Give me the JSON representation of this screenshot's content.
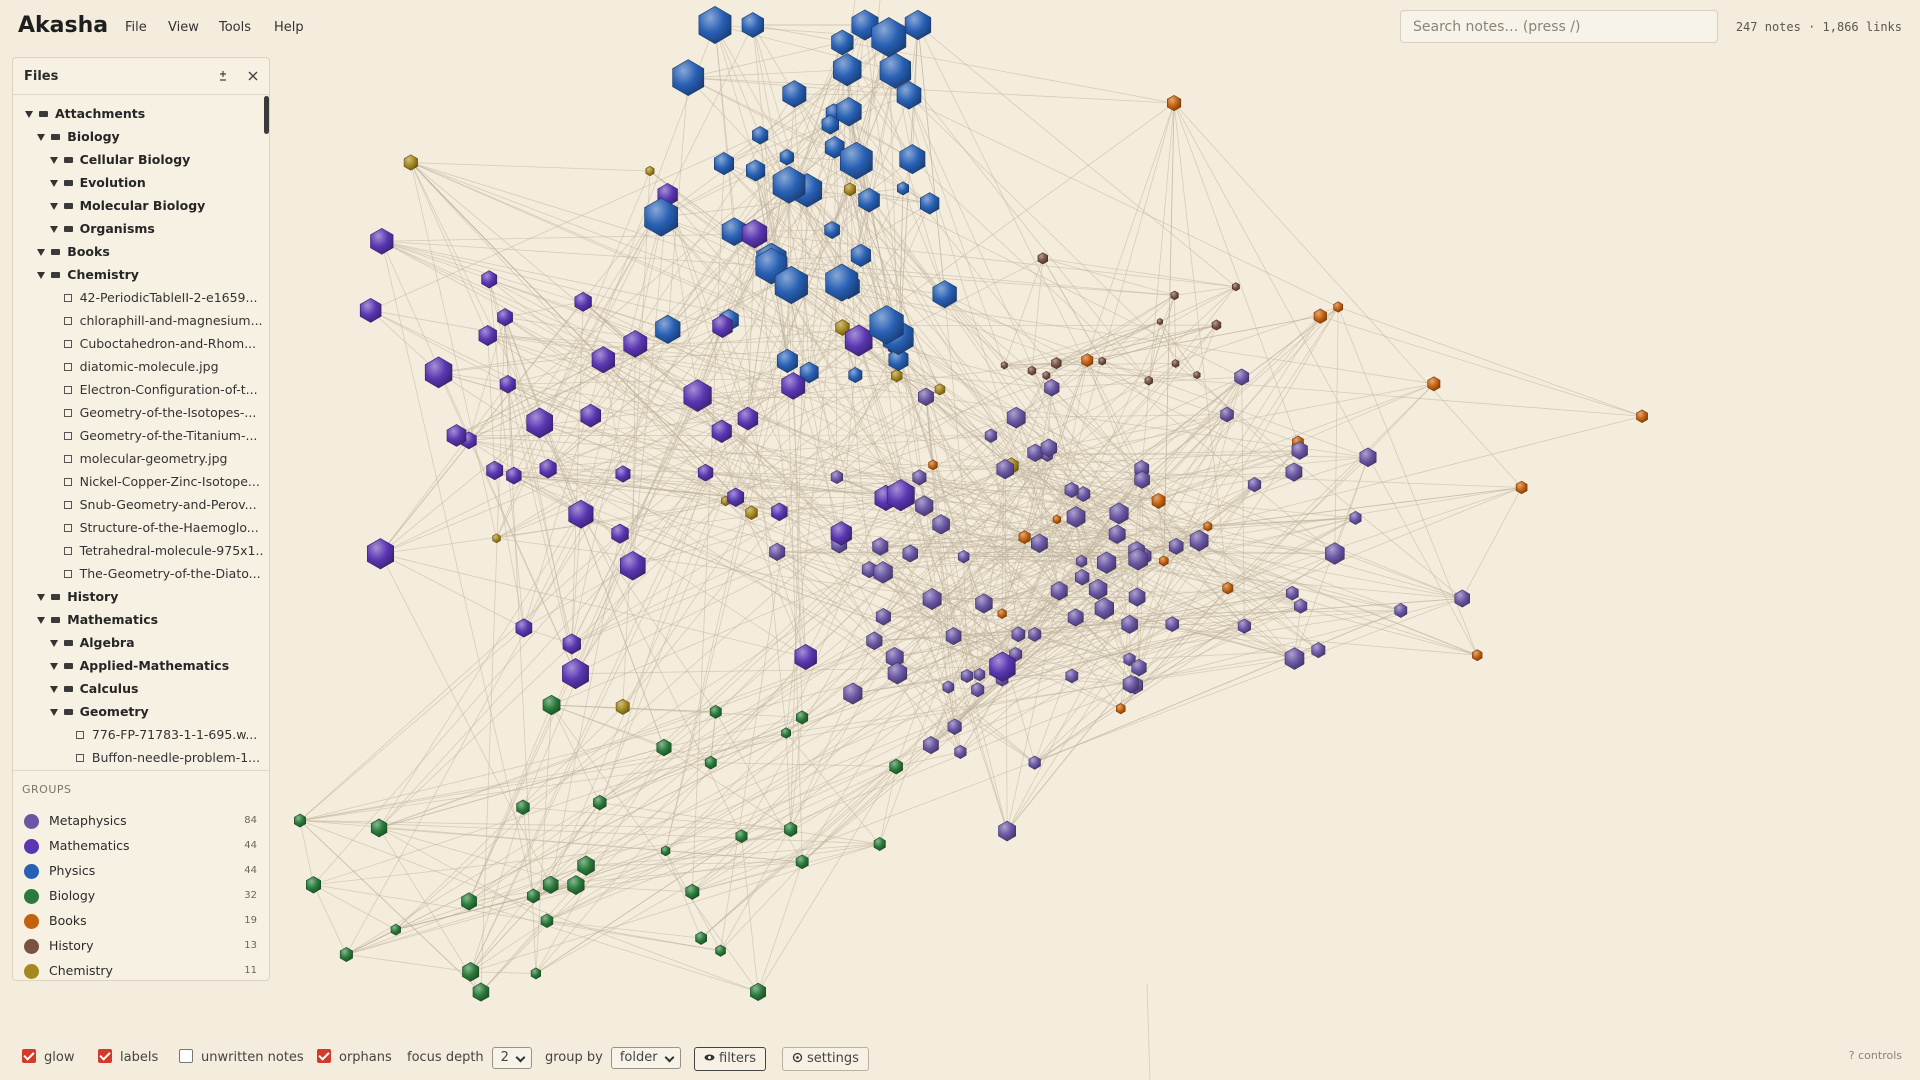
{
  "app": {
    "name": "Akasha",
    "menu": [
      "File",
      "View",
      "Tools",
      "Help"
    ],
    "search_placeholder": "Search notes…  (press /)",
    "stats": "247 notes · 1,866 links"
  },
  "files_panel": {
    "title": "Files",
    "tree": [
      {
        "name": "Attachments",
        "children": [
          {
            "name": "Biology",
            "children": [
              {
                "name": "Cellular Biology",
                "children": []
              },
              {
                "name": "Evolution",
                "children": []
              },
              {
                "name": "Molecular Biology",
                "children": []
              },
              {
                "name": "Organisms",
                "children": []
              }
            ]
          },
          {
            "name": "Books",
            "children": []
          },
          {
            "name": "Chemistry",
            "children": [
              "42-PeriodicTableII-2-e1659...",
              "chloraphill-and-magnesium...",
              "Cuboctahedron-and-Rhom...",
              "diatomic-molecule.jpg",
              "Electron-Configuration-of-t...",
              "Geometry-of-the-Isotopes-...",
              "Geometry-of-the-Titanium-...",
              "molecular-geometry.jpg",
              "Nickel-Copper-Zinc-Isotope...",
              "Snub-Geometry-and-Perov...",
              "Structure-of-the-Haemoglo...",
              "Tetrahedral-molecule-975x1...",
              "The-Geometry-of-the-Diato..."
            ]
          },
          {
            "name": "History",
            "children": []
          },
          {
            "name": "Mathematics",
            "children": [
              {
                "name": "Algebra",
                "children": []
              },
              {
                "name": "Applied-Mathematics",
                "children": []
              },
              {
                "name": "Calculus",
                "children": []
              },
              {
                "name": "Geometry",
                "children": [
                  "776-FP-71783-1-1-695.w...",
                  "Buffon-needle-problem-1..."
                ]
              }
            ]
          }
        ]
      }
    ]
  },
  "groups": {
    "title": "GROUPS",
    "items": [
      {
        "name": "Metaphysics",
        "count": 84,
        "color": "#6a56a4"
      },
      {
        "name": "Mathematics",
        "count": 44,
        "color": "#5a36b2"
      },
      {
        "name": "Physics",
        "count": 44,
        "color": "#2860b4"
      },
      {
        "name": "Biology",
        "count": 32,
        "color": "#2a7b3b"
      },
      {
        "name": "Books",
        "count": 19,
        "color": "#c4610f"
      },
      {
        "name": "History",
        "count": 13,
        "color": "#7a5242"
      },
      {
        "name": "Chemistry",
        "count": 11,
        "color": "#a5881f"
      }
    ]
  },
  "controls": {
    "checkboxes": [
      {
        "label": "glow",
        "checked": true
      },
      {
        "label": "labels",
        "checked": true
      },
      {
        "label": "unwritten notes",
        "checked": false
      },
      {
        "label": "orphans",
        "checked": true
      }
    ],
    "focus_depth": {
      "label": "focus depth",
      "value": 2
    },
    "group_by": {
      "label": "group by",
      "value": "folder"
    },
    "buttons": [
      "filters",
      "settings"
    ],
    "help": "? controls"
  }
}
